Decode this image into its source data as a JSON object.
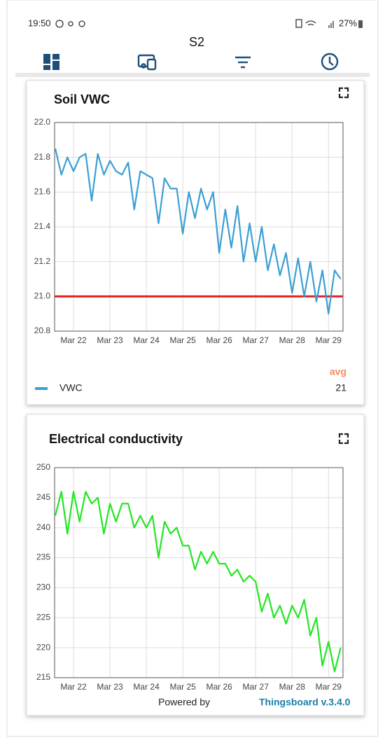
{
  "status_bar": {
    "time": "19:50",
    "battery": "27%"
  },
  "header": {
    "title": "S2"
  },
  "chart_data": [
    {
      "type": "line",
      "title": "Soil VWC",
      "categories": [
        null,
        null,
        null,
        "Mar 22",
        null,
        null,
        null,
        null,
        null,
        "Mar 23",
        null,
        null,
        null,
        null,
        null,
        "Mar 24",
        null,
        null,
        null,
        null,
        null,
        "Mar 25",
        null,
        null,
        null,
        null,
        null,
        "Mar 26",
        null,
        null,
        null,
        null,
        null,
        "Mar 27",
        null,
        null,
        null,
        null,
        null,
        "Mar 28",
        null,
        null,
        null,
        null,
        null,
        "Mar 29",
        null,
        null
      ],
      "series": [
        {
          "name": "VWC",
          "color": "#3a9fd4",
          "values": [
            21.85,
            21.7,
            21.8,
            21.72,
            21.8,
            21.82,
            21.55,
            21.82,
            21.7,
            21.78,
            21.72,
            21.7,
            21.77,
            21.5,
            21.72,
            21.7,
            21.68,
            21.42,
            21.68,
            21.62,
            21.62,
            21.36,
            21.6,
            21.45,
            21.62,
            21.5,
            21.6,
            21.25,
            21.5,
            21.28,
            21.52,
            21.2,
            21.42,
            21.2,
            21.4,
            21.15,
            21.3,
            21.12,
            21.25,
            21.02,
            21.22,
            21.0,
            21.2,
            20.97,
            21.15,
            20.9,
            21.15,
            21.1
          ]
        }
      ],
      "ylim": [
        20.8,
        22
      ],
      "yticks": [
        20.8,
        {
          "value": 21,
          "label": "21.0"
        },
        21.2,
        21.4,
        21.6,
        21.8,
        {
          "value": 22,
          "label": "22.0"
        }
      ],
      "grid": true,
      "threshold": {
        "value": 21,
        "color": "#e52222"
      },
      "legend_stats": {
        "label": "avg",
        "values": [
          21
        ]
      }
    },
    {
      "type": "line",
      "title": "Electrical conductivity",
      "categories": [
        null,
        null,
        null,
        "Mar 22",
        null,
        null,
        null,
        null,
        null,
        "Mar 23",
        null,
        null,
        null,
        null,
        null,
        "Mar 24",
        null,
        null,
        null,
        null,
        null,
        "Mar 25",
        null,
        null,
        null,
        null,
        null,
        "Mar 26",
        null,
        null,
        null,
        null,
        null,
        "Mar 27",
        null,
        null,
        null,
        null,
        null,
        "Mar 28",
        null,
        null,
        null,
        null,
        null,
        "Mar 29",
        null,
        null
      ],
      "series": [
        {
          "color": "#22e622",
          "values": [
            242,
            246,
            239,
            246,
            241,
            246,
            244,
            245,
            239,
            244,
            241,
            244,
            244,
            240,
            242,
            240,
            242,
            235,
            241,
            239,
            240,
            237,
            237,
            233,
            236,
            234,
            236,
            234,
            234,
            232,
            233,
            231,
            232,
            231,
            226,
            229,
            225,
            227,
            224,
            227,
            225,
            228,
            222,
            225,
            217,
            221,
            216,
            220
          ]
        }
      ],
      "ylim": [
        215,
        250
      ],
      "yticks": [
        215,
        220,
        225,
        230,
        235,
        240,
        245,
        250
      ],
      "grid": true
    }
  ],
  "footer": {
    "prefix": "Powered by",
    "brand": "Thingsboard v.3.4.0"
  }
}
